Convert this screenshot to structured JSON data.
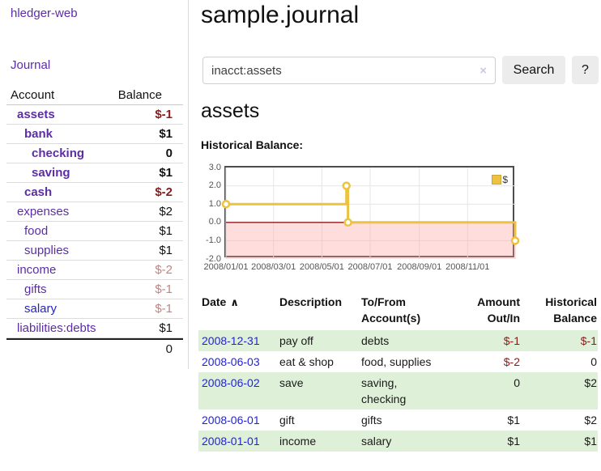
{
  "colors": {
    "link-purple": "#5c2da5",
    "link-blue": "#2323d4",
    "negative-strong": "#8b1a1a",
    "negative-soft": "#c08484",
    "row-green": "#dff0d8",
    "chart-gold": "#edc240",
    "chart-negative-fill": "#ff9d9d",
    "chart-zero-line": "#8b1a1a",
    "chart-grid": "#e6e6e6"
  },
  "app": {
    "title": "hledger-web"
  },
  "sidebar": {
    "journal_link": "Journal",
    "accounts_table": {
      "account_header": "Account",
      "balance_header": "Balance",
      "rows": [
        {
          "name": "assets",
          "balance": "$-1",
          "depth": 1,
          "bold": true,
          "neg": "strong",
          "link": "purple"
        },
        {
          "name": "bank",
          "balance": "$1",
          "depth": 2,
          "bold": true,
          "neg": "",
          "link": "purple"
        },
        {
          "name": "checking",
          "balance": "0",
          "depth": 3,
          "bold": true,
          "neg": "",
          "link": "purple"
        },
        {
          "name": "saving",
          "balance": "$1",
          "depth": 3,
          "bold": true,
          "neg": "",
          "link": "purple"
        },
        {
          "name": "cash",
          "balance": "$-2",
          "depth": 2,
          "bold": true,
          "neg": "strong",
          "link": "purple"
        },
        {
          "name": "expenses",
          "balance": "$2",
          "depth": 1,
          "bold": false,
          "neg": "",
          "link": "purple"
        },
        {
          "name": "food",
          "balance": "$1",
          "depth": 2,
          "bold": false,
          "neg": "",
          "link": "purple"
        },
        {
          "name": "supplies",
          "balance": "$1",
          "depth": 2,
          "bold": false,
          "neg": "",
          "link": "purple"
        },
        {
          "name": "income",
          "balance": "$-2",
          "depth": 1,
          "bold": false,
          "neg": "soft",
          "link": "purple"
        },
        {
          "name": "gifts",
          "balance": "$-1",
          "depth": 2,
          "bold": false,
          "neg": "soft",
          "link": "purple"
        },
        {
          "name": "salary",
          "balance": "$-1",
          "depth": 2,
          "bold": false,
          "neg": "soft",
          "link": "blue"
        },
        {
          "name": "liabilities:debts",
          "balance": "$1",
          "depth": 1,
          "bold": false,
          "neg": "",
          "link": "purple"
        }
      ],
      "total": "0"
    }
  },
  "main": {
    "title": "sample.journal",
    "search": {
      "value": "inacct:assets",
      "clear_icon": "×",
      "button_label": "Search",
      "help_label": "?"
    },
    "account_heading": "assets",
    "chart_label": "Historical Balance:",
    "register_table": {
      "headers": {
        "date": "Date",
        "sort_icon": "∧",
        "description": "Description",
        "accounts": "To/From Account(s)",
        "amount": "Amount Out/In",
        "balance": "Historical Balance"
      },
      "rows": [
        {
          "date": "2008-12-31",
          "description": "pay off",
          "accounts": "debts",
          "amount": "$-1",
          "balance": "$-1",
          "amount_negative": true,
          "balance_negative": true
        },
        {
          "date": "2008-06-03",
          "description": "eat & shop",
          "accounts": "food, supplies",
          "amount": "$-2",
          "balance": "0",
          "amount_negative": true,
          "balance_negative": false
        },
        {
          "date": "2008-06-02",
          "description": "save",
          "accounts": "saving, checking",
          "amount": "0",
          "balance": "$2",
          "amount_negative": false,
          "balance_negative": false
        },
        {
          "date": "2008-06-01",
          "description": "gift",
          "accounts": "gifts",
          "amount": "$1",
          "balance": "$2",
          "amount_negative": false,
          "balance_negative": false
        },
        {
          "date": "2008-01-01",
          "description": "income",
          "accounts": "salary",
          "amount": "$1",
          "balance": "$1",
          "amount_negative": false,
          "balance_negative": false
        }
      ]
    }
  },
  "chart_data": {
    "type": "line",
    "title": "Historical Balance:",
    "step": true,
    "series": [
      {
        "name": "$",
        "points": [
          [
            "2008-01-01",
            1.0
          ],
          [
            "2008-06-01",
            2.0
          ],
          [
            "2008-06-03",
            0.0
          ],
          [
            "2008-12-31",
            -1.0
          ]
        ]
      }
    ],
    "x_ticks": [
      "2008/01/01",
      "2008/03/01",
      "2008/05/01",
      "2008/07/01",
      "2008/09/01",
      "2008/11/01"
    ],
    "y_ticks": [
      3.0,
      2.0,
      1.0,
      0.0,
      -1.0,
      -2.0
    ],
    "xlim": [
      "2008-01-01",
      "2009-01-01"
    ],
    "ylim": [
      -2.0,
      3.0
    ],
    "grid": true,
    "legend": {
      "label": "$",
      "position": "top-right"
    },
    "negative_region_shaded": true,
    "zero_line": true
  }
}
